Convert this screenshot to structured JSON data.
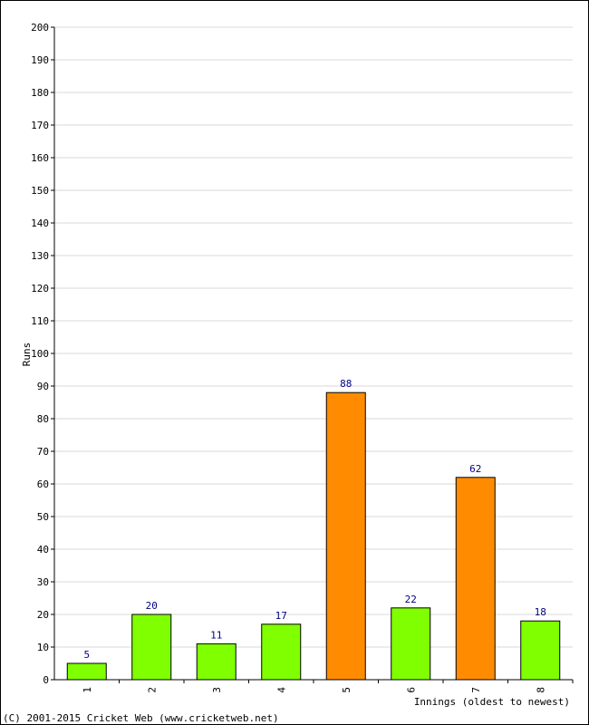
{
  "chart_data": {
    "type": "bar",
    "title": "",
    "xlabel": "Innings (oldest to newest)",
    "ylabel": "Runs",
    "ylim": [
      0,
      200
    ],
    "yticks": [
      0,
      10,
      20,
      30,
      40,
      50,
      60,
      70,
      80,
      90,
      100,
      110,
      120,
      130,
      140,
      150,
      160,
      170,
      180,
      190,
      200
    ],
    "grid": true,
    "categories": [
      "1",
      "2",
      "3",
      "4",
      "5",
      "6",
      "7",
      "8"
    ],
    "values": [
      5,
      20,
      11,
      17,
      88,
      22,
      62,
      18
    ],
    "data_labels": [
      "5",
      "20",
      "11",
      "17",
      "88",
      "22",
      "62",
      "18"
    ],
    "bar_colors": [
      "#80ff00",
      "#80ff00",
      "#80ff00",
      "#80ff00",
      "#ff8c00",
      "#80ff00",
      "#ff8c00",
      "#80ff00"
    ],
    "colors": {
      "fifty_plus": "#ff8c00",
      "under_fifty": "#80ff00",
      "data_label": "#000080",
      "grid": "#d8d8d8"
    }
  },
  "footer": {
    "copyright": "(C) 2001-2015 Cricket Web (www.cricketweb.net)"
  }
}
